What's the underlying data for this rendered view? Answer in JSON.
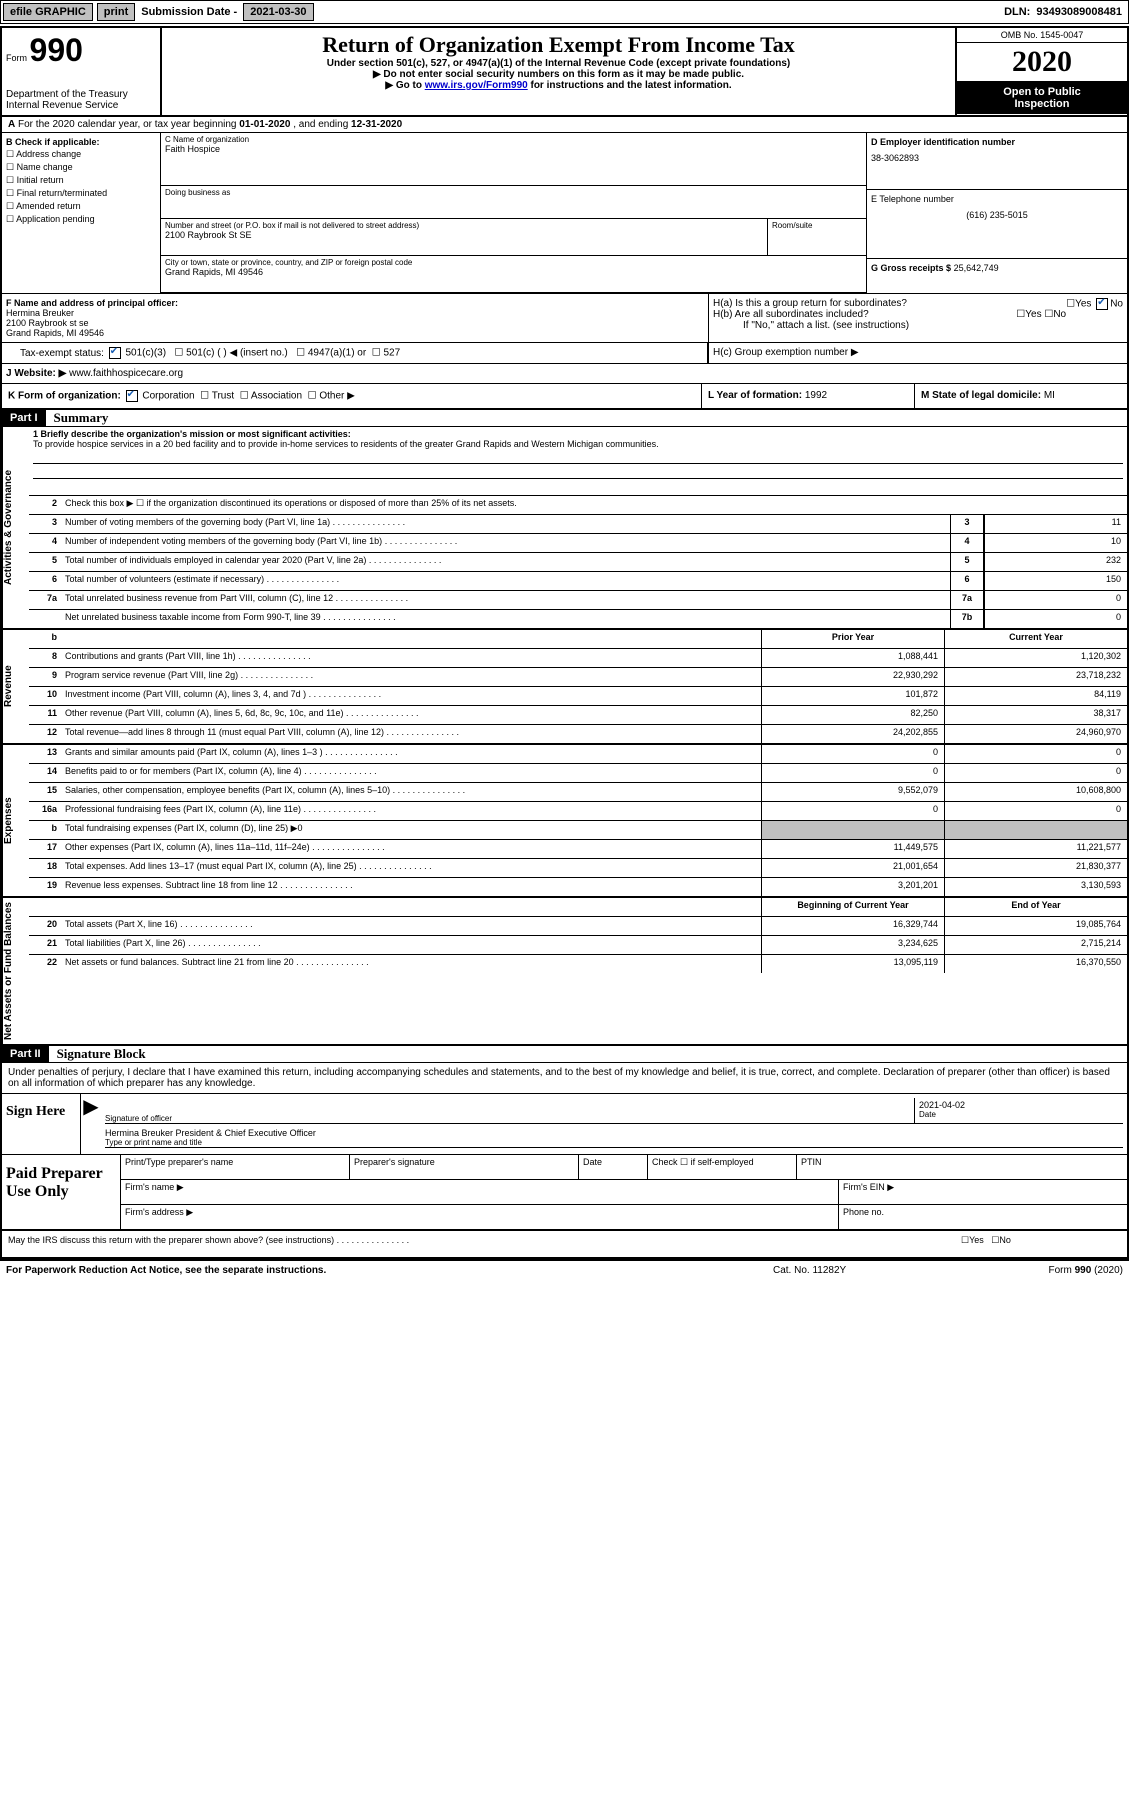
{
  "topbar": {
    "efile": "efile GRAPHIC",
    "print": "print",
    "subdate_label": "Submission Date -",
    "subdate": "2021-03-30",
    "dln_label": "DLN:",
    "dln": "93493089008481"
  },
  "header": {
    "form_word": "Form",
    "form_num": "990",
    "dept": "Department of the Treasury\nInternal Revenue Service",
    "title": "Return of Organization Exempt From Income Tax",
    "sub1": "Under section 501(c), 527, or 4947(a)(1) of the Internal Revenue Code (except private foundations)",
    "sub2": "▶ Do not enter social security numbers on this form as it may be made public.",
    "sub3_pre": "▶ Go to ",
    "sub3_link": "www.irs.gov/Form990",
    "sub3_post": " for instructions and the latest information.",
    "omb": "OMB No. 1545-0047",
    "year": "2020",
    "inspect1": "Open to Public",
    "inspect2": "Inspection"
  },
  "A": {
    "text": "For the 2020 calendar year, or tax year beginning ",
    "begin": "01-01-2020",
    "mid": " , and ending ",
    "end": "12-31-2020"
  },
  "B": {
    "label": "B Check if applicable:",
    "opts": [
      "Address change",
      "Name change",
      "Initial return",
      "Final return/terminated",
      "Amended return",
      "Application pending"
    ]
  },
  "C": {
    "name_label": "C Name of organization",
    "name": "Faith Hospice",
    "dba_label": "Doing business as",
    "street_label": "Number and street (or P.O. box if mail is not delivered to street address)",
    "street": "2100 Raybrook St SE",
    "suite_label": "Room/suite",
    "city_label": "City or town, state or province, country, and ZIP or foreign postal code",
    "city": "Grand Rapids, MI  49546"
  },
  "D": {
    "label": "D Employer identification number",
    "value": "38-3062893"
  },
  "E": {
    "label": "E Telephone number",
    "value": "(616) 235-5015"
  },
  "G": {
    "label": "G Gross receipts $",
    "value": "25,642,749"
  },
  "F": {
    "label": "F Name and address of principal officer:",
    "name": "Hermina Breuker",
    "addr1": "2100 Raybrook st se",
    "addr2": "Grand Rapids, MI  49546"
  },
  "H": {
    "a": "H(a)  Is this a group return for subordinates?",
    "b": "H(b)  Are all subordinates included?",
    "b_note": "If \"No,\" attach a list. (see instructions)",
    "c": "H(c)  Group exemption number ▶",
    "yes": "Yes",
    "no": "No"
  },
  "I": {
    "label": "Tax-exempt status:",
    "opt1": "501(c)(3)",
    "opt2": "501(c) (   ) ◀ (insert no.)",
    "opt3": "4947(a)(1) or",
    "opt4": "527"
  },
  "J": {
    "label": "J Website: ▶",
    "value": "www.faithhospicecare.org"
  },
  "K": {
    "label": "K Form of organization:",
    "opts": [
      "Corporation",
      "Trust",
      "Association",
      "Other ▶"
    ]
  },
  "L": {
    "label": "L Year of formation:",
    "value": "1992"
  },
  "M": {
    "label": "M State of legal domicile:",
    "value": "MI"
  },
  "part1": {
    "header": "Part I",
    "title": "Summary",
    "side1": "Activities & Governance",
    "side2": "Revenue",
    "side3": "Expenses",
    "side4": "Net Assets or Fund Balances",
    "line1_label": "1  Briefly describe the organization's mission or most significant activities:",
    "mission": "To provide hospice services in a 20 bed facility and to provide in-home services to residents of the greater Grand Rapids and Western Michigan communities.",
    "line2": "Check this box ▶ ☐ if the organization discontinued its operations or disposed of more than 25% of its net assets.",
    "rows_gov": [
      {
        "n": "3",
        "d": "Number of voting members of the governing body (Part VI, line 1a)",
        "k": "3",
        "v": "11"
      },
      {
        "n": "4",
        "d": "Number of independent voting members of the governing body (Part VI, line 1b)",
        "k": "4",
        "v": "10"
      },
      {
        "n": "5",
        "d": "Total number of individuals employed in calendar year 2020 (Part V, line 2a)",
        "k": "5",
        "v": "232"
      },
      {
        "n": "6",
        "d": "Total number of volunteers (estimate if necessary)",
        "k": "6",
        "v": "150"
      },
      {
        "n": "7a",
        "d": "Total unrelated business revenue from Part VIII, column (C), line 12",
        "k": "7a",
        "v": "0"
      },
      {
        "n": "",
        "d": "Net unrelated business taxable income from Form 990-T, line 39",
        "k": "7b",
        "v": "0"
      }
    ],
    "prior_label": "Prior Year",
    "current_label": "Current Year",
    "rows_rev": [
      {
        "n": "8",
        "d": "Contributions and grants (Part VIII, line 1h)",
        "p": "1,088,441",
        "c": "1,120,302"
      },
      {
        "n": "9",
        "d": "Program service revenue (Part VIII, line 2g)",
        "p": "22,930,292",
        "c": "23,718,232"
      },
      {
        "n": "10",
        "d": "Investment income (Part VIII, column (A), lines 3, 4, and 7d )",
        "p": "101,872",
        "c": "84,119"
      },
      {
        "n": "11",
        "d": "Other revenue (Part VIII, column (A), lines 5, 6d, 8c, 9c, 10c, and 11e)",
        "p": "82,250",
        "c": "38,317"
      },
      {
        "n": "12",
        "d": "Total revenue—add lines 8 through 11 (must equal Part VIII, column (A), line 12)",
        "p": "24,202,855",
        "c": "24,960,970"
      }
    ],
    "rows_exp": [
      {
        "n": "13",
        "d": "Grants and similar amounts paid (Part IX, column (A), lines 1–3 )",
        "p": "0",
        "c": "0"
      },
      {
        "n": "14",
        "d": "Benefits paid to or for members (Part IX, column (A), line 4)",
        "p": "0",
        "c": "0"
      },
      {
        "n": "15",
        "d": "Salaries, other compensation, employee benefits (Part IX, column (A), lines 5–10)",
        "p": "9,552,079",
        "c": "10,608,800"
      },
      {
        "n": "16a",
        "d": "Professional fundraising fees (Part IX, column (A), line 11e)",
        "p": "0",
        "c": "0"
      },
      {
        "n": "b",
        "d": "Total fundraising expenses (Part IX, column (D), line 25) ▶0",
        "p": "",
        "c": "",
        "grey": true
      },
      {
        "n": "17",
        "d": "Other expenses (Part IX, column (A), lines 11a–11d, 11f–24e)",
        "p": "11,449,575",
        "c": "11,221,577"
      },
      {
        "n": "18",
        "d": "Total expenses. Add lines 13–17 (must equal Part IX, column (A), line 25)",
        "p": "21,001,654",
        "c": "21,830,377"
      },
      {
        "n": "19",
        "d": "Revenue less expenses. Subtract line 18 from line 12",
        "p": "3,201,201",
        "c": "3,130,593"
      }
    ],
    "begin_label": "Beginning of Current Year",
    "end_label": "End of Year",
    "rows_net": [
      {
        "n": "20",
        "d": "Total assets (Part X, line 16)",
        "p": "16,329,744",
        "c": "19,085,764"
      },
      {
        "n": "21",
        "d": "Total liabilities (Part X, line 26)",
        "p": "3,234,625",
        "c": "2,715,214"
      },
      {
        "n": "22",
        "d": "Net assets or fund balances. Subtract line 21 from line 20",
        "p": "13,095,119",
        "c": "16,370,550"
      }
    ]
  },
  "part2": {
    "header": "Part II",
    "title": "Signature Block",
    "decl": "Under penalties of perjury, I declare that I have examined this return, including accompanying schedules and statements, and to the best of my knowledge and belief, it is true, correct, and complete. Declaration of preparer (other than officer) is based on all information of which preparer has any knowledge.",
    "sign_here": "Sign Here",
    "sig_officer": "Signature of officer",
    "date_label": "Date",
    "date": "2021-04-02",
    "officer_name": "Hermina Breuker  President & Chief Executive Officer",
    "type_name": "Type or print name and title",
    "paid": "Paid Preparer Use Only",
    "prep_name": "Print/Type preparer's name",
    "prep_sig": "Preparer's signature",
    "prep_date": "Date",
    "check_self": "Check ☐ if self-employed",
    "ptin": "PTIN",
    "firm_name": "Firm's name    ▶",
    "firm_ein": "Firm's EIN ▶",
    "firm_addr": "Firm's address ▶",
    "phone": "Phone no.",
    "discuss": "May the IRS discuss this return with the preparer shown above? (see instructions)"
  },
  "footer": {
    "left": "For Paperwork Reduction Act Notice, see the separate instructions.",
    "mid": "Cat. No. 11282Y",
    "right": "Form 990 (2020)"
  }
}
